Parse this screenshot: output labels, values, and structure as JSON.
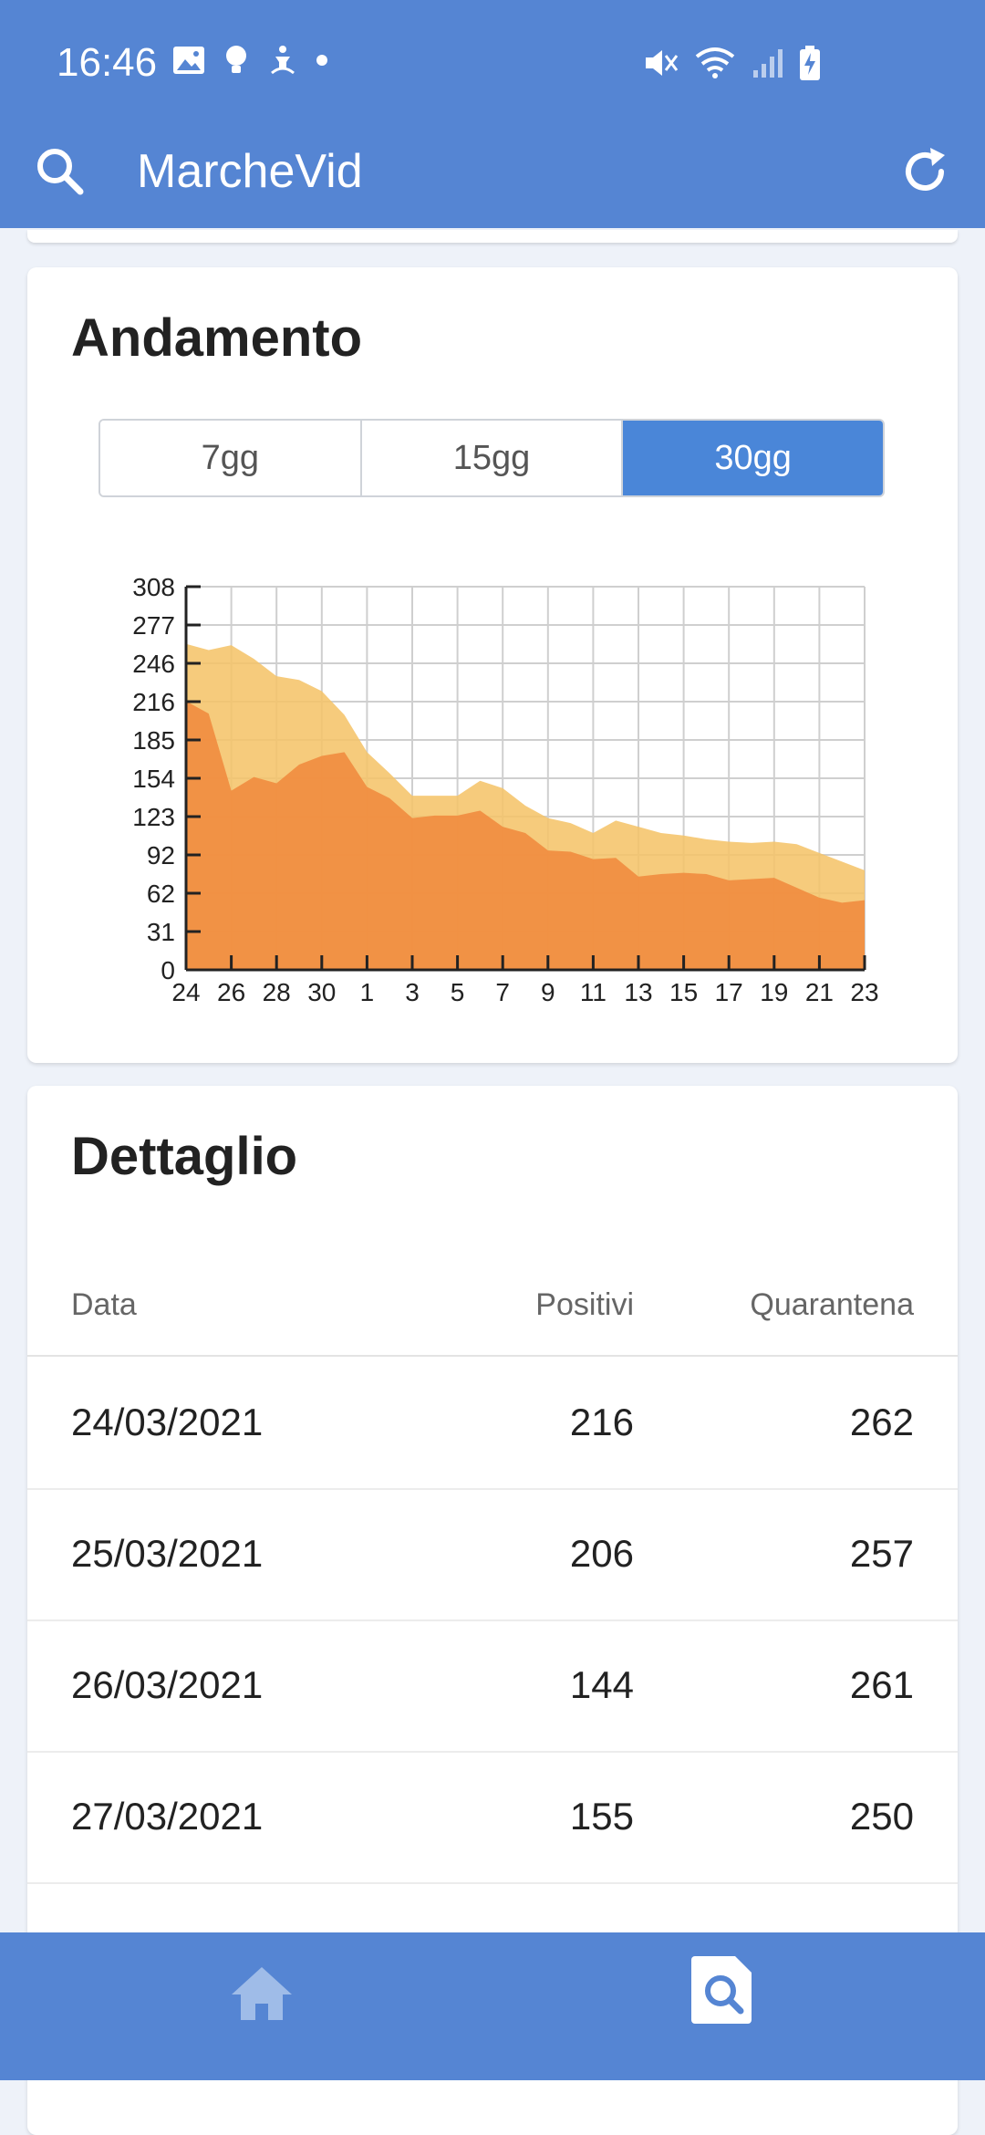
{
  "status_bar": {
    "time": "16:46"
  },
  "app_bar": {
    "title": "MarcheVid"
  },
  "chart_card": {
    "title": "Andamento",
    "segments": [
      {
        "label": "7gg",
        "active": false
      },
      {
        "label": "15gg",
        "active": false
      },
      {
        "label": "30gg",
        "active": true
      }
    ]
  },
  "chart_data": {
    "type": "area",
    "x": [
      "24",
      "25",
      "26",
      "27",
      "28",
      "29",
      "30",
      "31",
      "1",
      "2",
      "3",
      "4",
      "5",
      "6",
      "7",
      "8",
      "9",
      "10",
      "11",
      "12",
      "13",
      "14",
      "15",
      "16",
      "17",
      "18",
      "19",
      "20",
      "21",
      "22",
      "23"
    ],
    "x_tick_labels": [
      "24",
      "26",
      "28",
      "30",
      "1",
      "3",
      "5",
      "7",
      "9",
      "11",
      "13",
      "15",
      "17",
      "19",
      "21",
      "23"
    ],
    "y_tick_labels": [
      "308",
      "277",
      "246",
      "216",
      "185",
      "154",
      "123",
      "92",
      "62",
      "31",
      "0"
    ],
    "ylim": [
      0,
      308
    ],
    "grid": true,
    "series": [
      {
        "values": [
          262,
          257,
          261,
          250,
          236,
          233,
          224,
          205,
          175,
          158,
          140,
          140,
          140,
          152,
          146,
          132,
          122,
          118,
          110,
          120,
          115,
          110,
          108,
          105,
          103,
          102,
          103,
          101,
          94,
          87,
          80
        ],
        "color": "#f5c46a"
      },
      {
        "values": [
          216,
          206,
          144,
          155,
          150,
          165,
          172,
          175,
          147,
          138,
          122,
          124,
          124,
          128,
          115,
          110,
          96,
          95,
          89,
          90,
          75,
          77,
          78,
          77,
          72,
          73,
          74,
          66,
          58,
          54,
          56
        ],
        "color": "#f08a3e"
      }
    ]
  },
  "detail_card": {
    "title": "Dettaglio",
    "columns": [
      "Data",
      "Positivi",
      "Quarantena"
    ],
    "rows": [
      {
        "date": "24/03/2021",
        "positivi": "216",
        "quarantena": "262"
      },
      {
        "date": "25/03/2021",
        "positivi": "206",
        "quarantena": "257"
      },
      {
        "date": "26/03/2021",
        "positivi": "144",
        "quarantena": "261"
      },
      {
        "date": "27/03/2021",
        "positivi": "155",
        "quarantena": "250"
      }
    ]
  },
  "bottom_nav": {
    "items": [
      {
        "icon": "home-icon",
        "active": false
      },
      {
        "icon": "document-search-icon",
        "active": true
      }
    ]
  }
}
